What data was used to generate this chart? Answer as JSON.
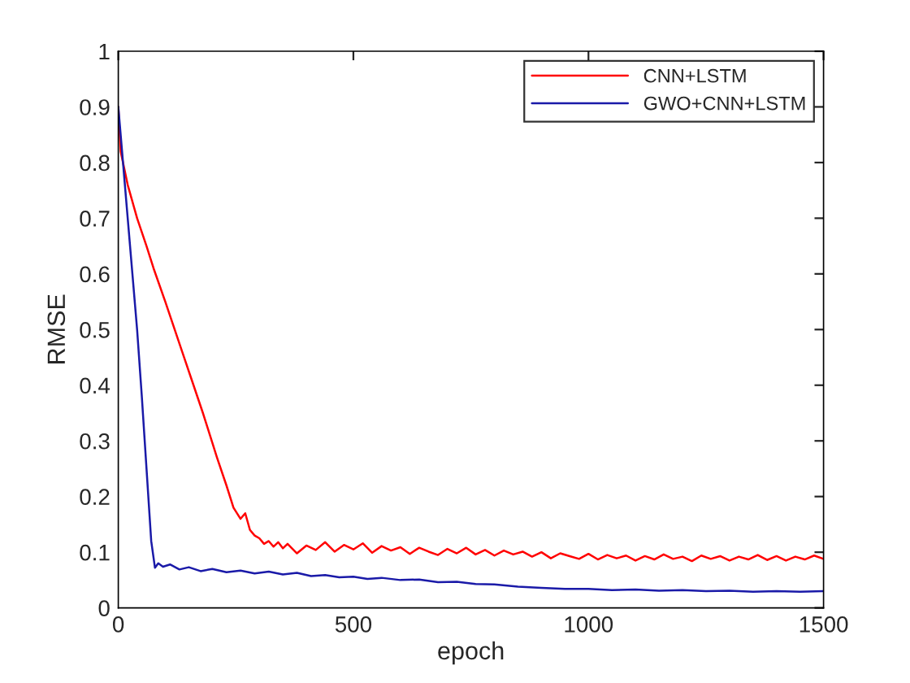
{
  "chart_data": {
    "type": "line",
    "xlabel": "epoch",
    "ylabel": "RMSE",
    "xlim": [
      0,
      1500
    ],
    "ylim": [
      0,
      1
    ],
    "xticks": [
      0,
      500,
      1000,
      1500
    ],
    "yticks": [
      0,
      0.1,
      0.2,
      0.3,
      0.4,
      0.5,
      0.6,
      0.7,
      0.8,
      0.9,
      1
    ],
    "grid": false,
    "legend": "top right",
    "marker": "none",
    "line_style": "solid",
    "series": [
      {
        "name": "CNN+LSTM",
        "color": "#ff0000",
        "x": [
          0,
          5,
          20,
          40,
          60,
          75,
          100,
          120,
          140,
          160,
          180,
          195,
          210,
          230,
          245,
          260,
          270,
          280,
          290,
          300,
          310,
          320,
          330,
          340,
          350,
          360,
          380,
          400,
          420,
          440,
          460,
          480,
          500,
          520,
          540,
          560,
          580,
          600,
          620,
          640,
          660,
          680,
          700,
          720,
          740,
          760,
          780,
          800,
          820,
          840,
          860,
          880,
          900,
          920,
          940,
          960,
          980,
          1000,
          1020,
          1040,
          1060,
          1080,
          1100,
          1120,
          1140,
          1160,
          1180,
          1200,
          1220,
          1240,
          1260,
          1280,
          1300,
          1320,
          1340,
          1360,
          1380,
          1400,
          1420,
          1440,
          1460,
          1480,
          1500
        ],
        "values": [
          0.9,
          0.82,
          0.76,
          0.7,
          0.65,
          0.61,
          0.55,
          0.5,
          0.45,
          0.4,
          0.35,
          0.31,
          0.27,
          0.22,
          0.18,
          0.16,
          0.17,
          0.14,
          0.13,
          0.125,
          0.115,
          0.12,
          0.11,
          0.118,
          0.107,
          0.115,
          0.098,
          0.112,
          0.104,
          0.118,
          0.101,
          0.113,
          0.105,
          0.116,
          0.099,
          0.111,
          0.103,
          0.109,
          0.097,
          0.108,
          0.101,
          0.095,
          0.106,
          0.098,
          0.108,
          0.096,
          0.104,
          0.094,
          0.103,
          0.096,
          0.101,
          0.092,
          0.1,
          0.089,
          0.098,
          0.093,
          0.088,
          0.097,
          0.087,
          0.095,
          0.089,
          0.094,
          0.085,
          0.093,
          0.087,
          0.096,
          0.088,
          0.092,
          0.084,
          0.094,
          0.088,
          0.093,
          0.085,
          0.092,
          0.087,
          0.095,
          0.086,
          0.093,
          0.085,
          0.092,
          0.087,
          0.094,
          0.088
        ]
      },
      {
        "name": "GWO+CNN+LSTM",
        "color": "#1a1aa8",
        "x": [
          0,
          10,
          20,
          30,
          40,
          50,
          60,
          70,
          78,
          85,
          95,
          110,
          130,
          150,
          175,
          200,
          230,
          260,
          290,
          320,
          350,
          380,
          410,
          440,
          470,
          500,
          530,
          560,
          600,
          640,
          680,
          720,
          760,
          800,
          850,
          900,
          950,
          1000,
          1050,
          1100,
          1150,
          1200,
          1250,
          1300,
          1350,
          1400,
          1450,
          1500
        ],
        "values": [
          0.9,
          0.8,
          0.7,
          0.6,
          0.5,
          0.38,
          0.25,
          0.12,
          0.072,
          0.08,
          0.074,
          0.078,
          0.069,
          0.073,
          0.066,
          0.07,
          0.064,
          0.067,
          0.062,
          0.065,
          0.06,
          0.063,
          0.057,
          0.059,
          0.055,
          0.056,
          0.052,
          0.054,
          0.05,
          0.051,
          0.046,
          0.047,
          0.043,
          0.042,
          0.038,
          0.036,
          0.034,
          0.034,
          0.032,
          0.033,
          0.031,
          0.032,
          0.03,
          0.031,
          0.029,
          0.03,
          0.029,
          0.03
        ]
      }
    ]
  }
}
